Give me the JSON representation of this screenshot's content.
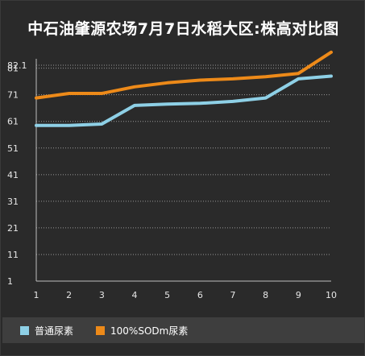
{
  "title": "中石油肇源农场7月7日水稻大区:株高对比图",
  "chart_data": {
    "type": "line",
    "title": "中石油肇源农场7月7日水稻大区:株高对比图",
    "xlabel": "",
    "ylabel": "",
    "x": [
      1,
      2,
      3,
      4,
      5,
      6,
      7,
      8,
      9,
      10
    ],
    "ylim": [
      1,
      82.1
    ],
    "yticks": [
      1,
      11,
      21,
      31,
      41,
      51,
      61,
      71,
      81,
      82.1
    ],
    "grid": true,
    "legend_position": "bottom-left",
    "series": [
      {
        "name": "普通尿素",
        "color": "#8ed0e6",
        "values": [
          59.5,
          59.5,
          60,
          67,
          67.5,
          67.8,
          68.5,
          69.8,
          77,
          78
        ]
      },
      {
        "name": "100%SODm尿素",
        "color": "#ed8a19",
        "values": [
          69.8,
          71.5,
          71.5,
          74,
          75.5,
          76.5,
          77,
          77.8,
          79,
          87
        ]
      }
    ]
  }
}
